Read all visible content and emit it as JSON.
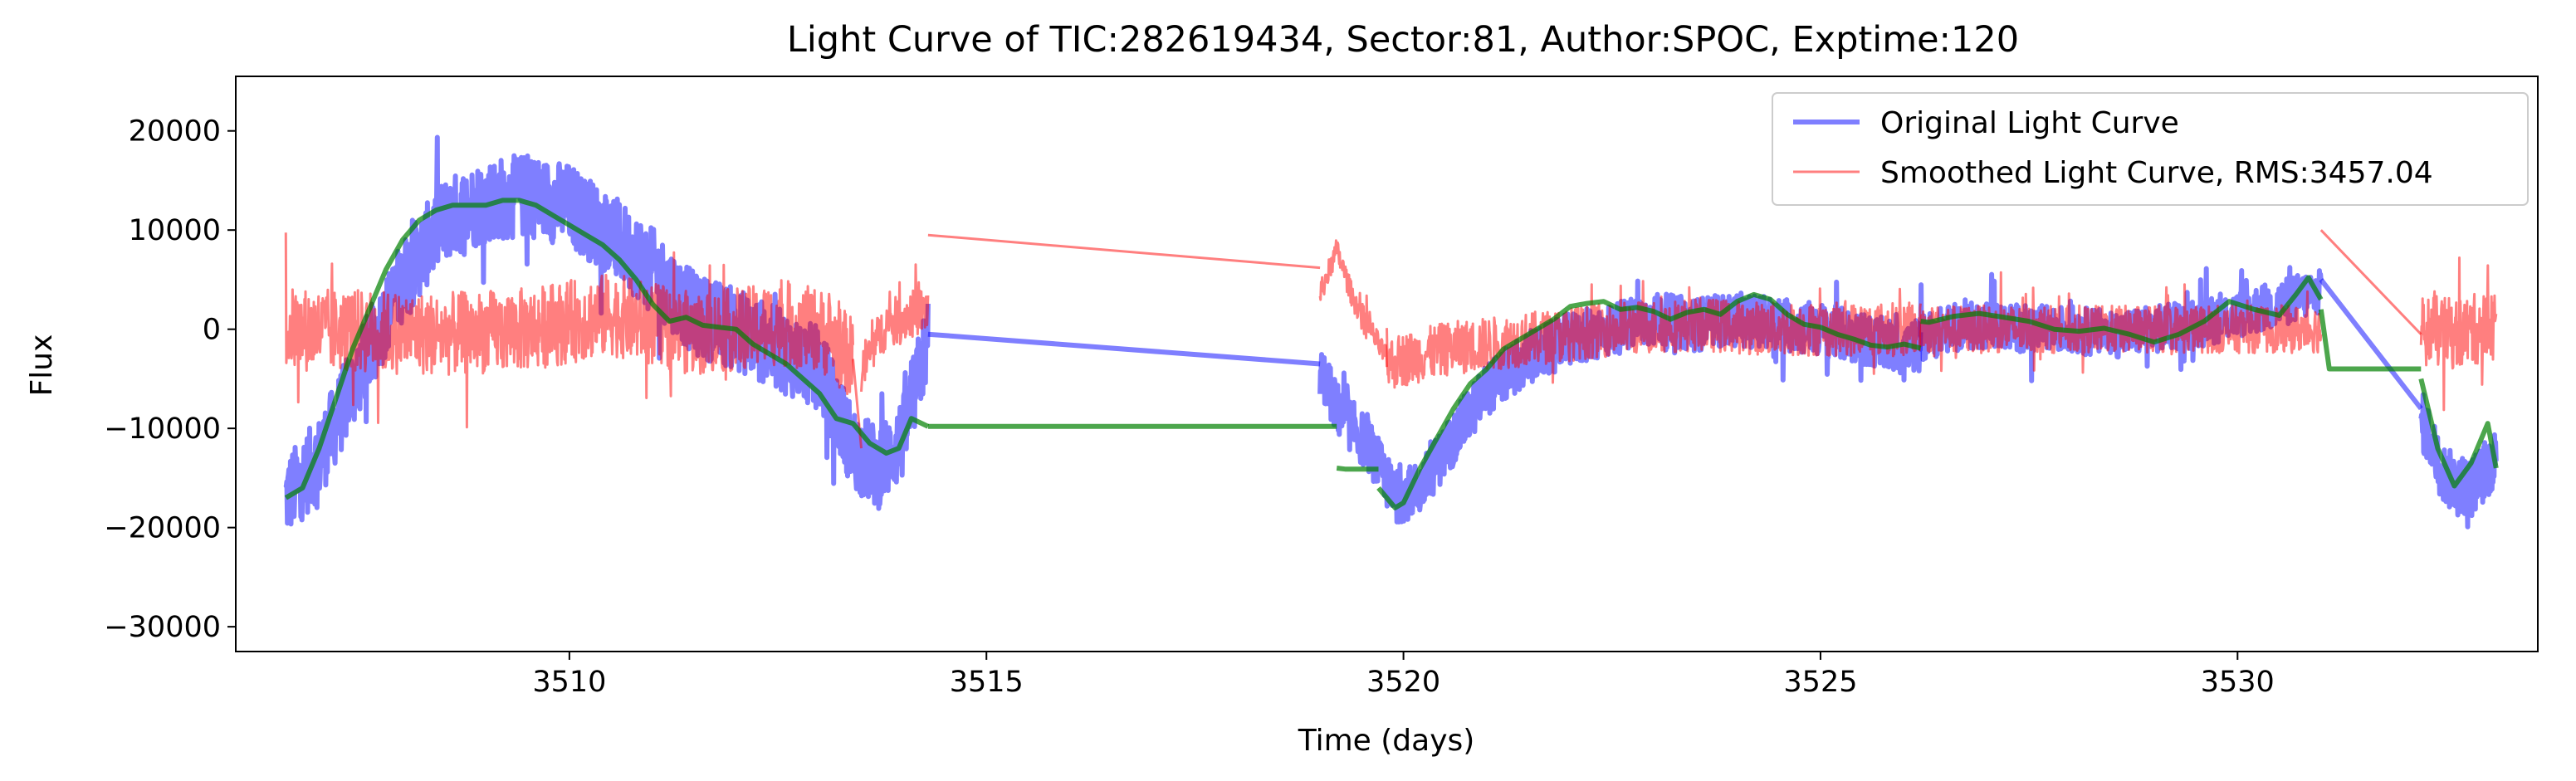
{
  "chart_data": {
    "type": "line",
    "title": "Light Curve of TIC:282619434, Sector:81, Author:SPOC, Exptime:120",
    "xlabel": "Time (days)",
    "ylabel": "Flux",
    "xlim": [
      3506.0,
      3533.6
    ],
    "ylim": [
      -32500,
      25500
    ],
    "xticks": [
      3510,
      3515,
      3520,
      3525,
      3530
    ],
    "xtick_labels": [
      "3510",
      "3515",
      "3520",
      "3525",
      "3530"
    ],
    "yticks": [
      20000,
      10000,
      0,
      -10000,
      -20000,
      -30000
    ],
    "ytick_labels": [
      "20000",
      "10000",
      "0",
      "−10000",
      "−20000",
      "−30000"
    ],
    "grid": false,
    "legend": {
      "placement": "top-right"
    },
    "series": [
      {
        "name": "Original Light Curve",
        "color": "#0000ff",
        "alpha": 0.5,
        "segments": [
          {
            "x": [
              3506.6,
              3507.0,
              3507.5,
              3508.0,
              3508.5,
              3509.0,
              3509.5,
              3510.0,
              3510.5,
              3511.0,
              3511.5,
              3512.0,
              3512.5,
              3513.0,
              3513.4,
              3513.7,
              3514.0,
              3514.3
            ],
            "y": [
              -17000,
              -13000,
              -4000,
              5000,
              11000,
              13000,
              13500,
              12500,
              9500,
              6000,
              1500,
              0,
              -2000,
              -4000,
              -12000,
              -14000,
              -11000,
              -1000
            ],
            "noise": 7000
          },
          {
            "x": [
              3514.3,
              3519.0
            ],
            "y": [
              -500,
              -3500
            ],
            "noise": 0
          },
          {
            "x": [
              3519.0,
              3519.2,
              3519.6,
              3519.9,
              3520.2,
              3520.6,
              3521.0,
              3521.5,
              3522.0,
              3522.5,
              3523.0,
              3523.5,
              3524.0,
              3524.5,
              3525.0,
              3525.5,
              3526.0,
              3526.2
            ],
            "y": [
              -4000,
              -8000,
              -12000,
              -17000,
              -16000,
              -11000,
              -6000,
              -3000,
              -1000,
              0,
              1000,
              500,
              1000,
              500,
              0,
              -1000,
              -2000,
              -1500
            ],
            "noise": 4500
          },
          {
            "x": [
              3526.2,
              3526.5,
              3527.0,
              3527.5,
              3528.0,
              3528.5,
              3529.0,
              3529.5,
              3530.0,
              3530.5,
              3531.0
            ],
            "y": [
              -1000,
              0,
              500,
              0,
              0,
              -500,
              0,
              500,
              1500,
              2500,
              4000
            ],
            "noise": 4000
          },
          {
            "x": [
              3531.0,
              3532.2
            ],
            "y": [
              5000,
              -8000
            ],
            "noise": 0
          },
          {
            "x": [
              3532.2,
              3532.5,
              3532.8,
              3533.1
            ],
            "y": [
              -9000,
              -15000,
              -16000,
              -13000
            ],
            "noise": 5000
          }
        ]
      },
      {
        "name": "Smoothed Light Curve, RMS:3457.04",
        "color": "#ff0000",
        "alpha": 0.5,
        "segments": [
          {
            "x": [
              3506.6,
              3507.5,
              3508.5,
              3509.5,
              3510.5,
              3511.5,
              3512.5,
              3513.0,
              3513.4
            ],
            "y": [
              0,
              -200,
              -500,
              0,
              1500,
              -500,
              500,
              0,
              -3000
            ],
            "noise": 7000
          },
          {
            "x": [
              3513.4,
              3513.5
            ],
            "y": [
              -3000,
              -12000
            ],
            "noise": 0
          },
          {
            "x": [
              3513.5,
              3513.8,
              3514.1,
              3514.3
            ],
            "y": [
              -4000,
              500,
              1500,
              2000
            ],
            "noise": 4000
          },
          {
            "x": [
              3514.3,
              3519.0
            ],
            "y": [
              9500,
              6200
            ],
            "noise": 0
          },
          {
            "x": [
              3519.0,
              3519.2,
              3519.4,
              3519.8
            ],
            "y": [
              3500,
              8000,
              3000,
              -3000
            ],
            "noise": 2000
          },
          {
            "x": [
              3519.8,
              3520.5,
              3521.5,
              3522.5,
              3523.5,
              3524.5,
              3525.5,
              3526.2
            ],
            "y": [
              -3500,
              -2000,
              -1000,
              0,
              500,
              0,
              0,
              0
            ],
            "noise": 4500
          },
          {
            "x": [
              3526.2,
              3527.5,
              3528.5,
              3529.5,
              3530.5,
              3531.0
            ],
            "y": [
              0,
              0,
              0,
              0,
              0,
              0
            ],
            "noise": 4000
          },
          {
            "x": [
              3531.0,
              3532.2
            ],
            "y": [
              10000,
              -500
            ],
            "noise": 0
          },
          {
            "x": [
              3532.2,
              3532.6,
              3533.1
            ],
            "y": [
              0,
              -500,
              500
            ],
            "noise": 6000
          }
        ]
      },
      {
        "name": "",
        "color": "#008000",
        "alpha": 0.7,
        "segments": [
          {
            "x": [
              3506.6,
              3506.8,
              3507.0,
              3507.2,
              3507.4,
              3507.6,
              3507.8,
              3508.0,
              3508.2,
              3508.4,
              3508.6,
              3508.8,
              3509.0,
              3509.2,
              3509.4,
              3509.6,
              3509.8,
              3510.0,
              3510.2,
              3510.4,
              3510.6,
              3510.8,
              3511.0,
              3511.2,
              3511.4,
              3511.6,
              3511.8,
              3512.0,
              3512.2,
              3512.4,
              3512.6,
              3512.8,
              3513.0,
              3513.2,
              3513.4,
              3513.6,
              3513.8,
              3513.95,
              3514.1,
              3514.3
            ],
            "y": [
              -17000,
              -16000,
              -12000,
              -7000,
              -2000,
              2000,
              6000,
              9000,
              11000,
              12000,
              12500,
              12500,
              12500,
              13000,
              13000,
              12500,
              11500,
              10500,
              9500,
              8500,
              7000,
              5000,
              2500,
              800,
              1200,
              400,
              200,
              0,
              -1500,
              -2500,
              -3500,
              -5000,
              -6500,
              -9000,
              -9500,
              -11500,
              -12500,
              -12000,
              -9000,
              -9800
            ]
          },
          {
            "x": [
              3514.3,
              3519.0,
              3519.2
            ],
            "y": [
              -9800,
              -9800,
              -9800
            ]
          },
          {
            "x": [
              3519.2,
              3519.3,
              3519.7
            ],
            "y": [
              -14000,
              -14100,
              -14100
            ]
          },
          {
            "x": [
              3519.7,
              3519.9,
              3520.0,
              3520.2,
              3520.4,
              3520.6,
              3520.8,
              3521.0,
              3521.2,
              3521.4,
              3521.6,
              3521.8,
              3522.0,
              3522.2,
              3522.4,
              3522.6,
              3522.8,
              3523.0,
              3523.2,
              3523.4,
              3523.6,
              3523.8,
              3524.0,
              3524.2,
              3524.4,
              3524.6,
              3524.8,
              3525.0,
              3525.2,
              3525.4,
              3525.6,
              3525.8,
              3526.0,
              3526.2
            ],
            "y": [
              -16000,
              -18000,
              -17500,
              -14000,
              -11000,
              -8000,
              -5500,
              -4000,
              -2000,
              -1000,
              0,
              1000,
              2300,
              2600,
              2800,
              2000,
              2200,
              1800,
              1000,
              1700,
              2000,
              1500,
              2800,
              3500,
              3000,
              1500,
              500,
              200,
              -500,
              -1000,
              -1600,
              -1800,
              -1500,
              -1900
            ]
          },
          {
            "x": [
              3526.2,
              3526.3,
              3526.6,
              3526.9,
              3527.2,
              3527.5,
              3527.8,
              3528.1,
              3528.4,
              3528.7,
              3529.0,
              3529.3,
              3529.6,
              3529.9,
              3530.2,
              3530.5,
              3530.7,
              3530.85,
              3531.0
            ],
            "y": [
              800,
              700,
              1300,
              1600,
              1200,
              800,
              0,
              -200,
              100,
              -500,
              -1300,
              -500,
              800,
              2800,
              2000,
              1400,
              3500,
              5200,
              3000
            ]
          },
          {
            "x": [
              3531.0,
              3531.1,
              3532.2
            ],
            "y": [
              2000,
              -4000,
              -4000
            ]
          },
          {
            "x": [
              3532.2,
              3532.4,
              3532.6,
              3532.8,
              3533.0,
              3533.1
            ],
            "y": [
              -5000,
              -12000,
              -15800,
              -13500,
              -9500,
              -14000
            ]
          }
        ]
      }
    ]
  }
}
